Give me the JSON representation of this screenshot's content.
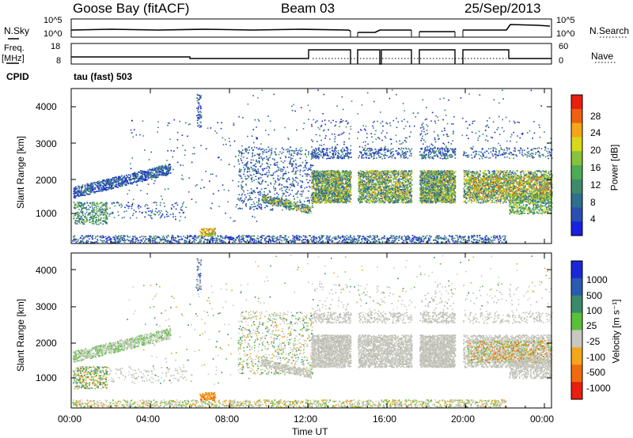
{
  "header": {
    "site": "Goose Bay (fitACF)",
    "beam": "Beam 03",
    "date": "25/Sep/2013"
  },
  "status_panels": {
    "nsky_label": "N.Sky",
    "nsearch_label": "N.Search",
    "noise_ticks": [
      "10^5",
      "10^0"
    ],
    "freq_label": "Freq.",
    "freq_unit": "[MHz]",
    "freq_ticks": [
      "18",
      "8"
    ],
    "nave_label": "Nave",
    "nave_ticks": [
      "60",
      "0"
    ],
    "cpid_label": "CPID",
    "cpid_value": "tau (fast) 503"
  },
  "chart_data": [
    {
      "type": "heatmap",
      "name": "power",
      "ylabel": "Slant Range [km]",
      "xlabel": "",
      "yticks": [
        "1000",
        "2000",
        "3000",
        "4000"
      ],
      "ylim": [
        200,
        4500
      ],
      "colorbar": {
        "label": "Power [dB]",
        "ticks": [
          "4",
          "8",
          "12",
          "16",
          "20",
          "24",
          "28"
        ],
        "colors": [
          "#1a20e0",
          "#2a4fb0",
          "#2f6f8f",
          "#3f8a6a",
          "#4cab55",
          "#88c23a",
          "#d8d81a",
          "#f5a51a",
          "#f06010",
          "#e81e0e"
        ]
      }
    },
    {
      "type": "heatmap",
      "name": "velocity",
      "ylabel": "Slant Range [km]",
      "xlabel": "Time UT",
      "xticks": [
        "00:00",
        "04:00",
        "08:00",
        "12:00",
        "16:00",
        "20:00",
        "00:00"
      ],
      "yticks": [
        "1000",
        "2000",
        "3000",
        "4000"
      ],
      "ylim": [
        200,
        4500
      ],
      "colorbar": {
        "label": "Velocity [m s⁻¹]",
        "ticks": [
          "1000",
          "500",
          "100",
          "25",
          "-25",
          "-100",
          "-500",
          "-1000"
        ],
        "colors": [
          "#1a28d8",
          "#2a5ab0",
          "#3a8a6a",
          "#5ac03a",
          "#c8c8c0",
          "#f5a51a",
          "#f06a10",
          "#e81e0e"
        ]
      }
    }
  ]
}
